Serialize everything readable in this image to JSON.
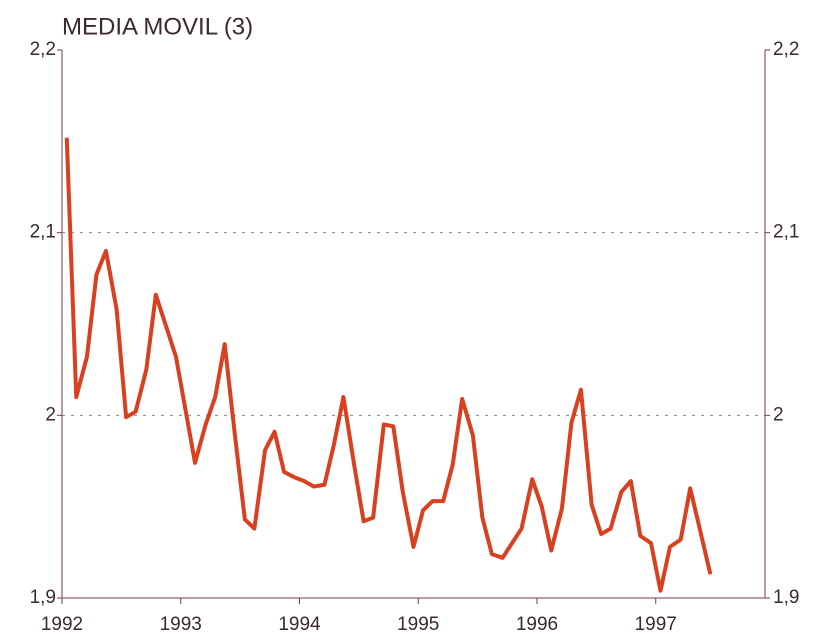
{
  "chart_data": {
    "type": "line",
    "title": "MEDIA MOVIL (3)",
    "x": [
      1992.04,
      1992.12,
      1992.21,
      1992.29,
      1992.37,
      1992.46,
      1992.54,
      1992.62,
      1992.71,
      1992.79,
      1992.87,
      1992.96,
      1993.04,
      1993.12,
      1993.21,
      1993.29,
      1993.37,
      1993.46,
      1993.54,
      1993.62,
      1993.71,
      1993.79,
      1993.87,
      1993.96,
      1994.04,
      1994.12,
      1994.21,
      1994.29,
      1994.37,
      1994.46,
      1994.54,
      1994.62,
      1994.71,
      1994.79,
      1994.87,
      1994.96,
      1995.04,
      1995.12,
      1995.21,
      1995.29,
      1995.37,
      1995.46,
      1995.54,
      1995.62,
      1995.71,
      1995.79,
      1995.87,
      1995.96,
      1996.04,
      1996.12,
      1996.21,
      1996.29,
      1996.37,
      1996.46,
      1996.54,
      1996.62,
      1996.71,
      1996.79,
      1996.87,
      1996.96,
      1997.04,
      1997.12,
      1997.21,
      1997.29,
      1997.37,
      1997.46
    ],
    "series": [
      {
        "color": "#d8401f",
        "values": [
          2.152,
          2.01,
          2.032,
          2.077,
          2.09,
          2.058,
          1.999,
          2.002,
          2.025,
          2.066,
          2.05,
          2.032,
          2.003,
          1.974,
          1.995,
          2.01,
          2.039,
          1.987,
          1.943,
          1.938,
          1.981,
          1.991,
          1.969,
          1.966,
          1.964,
          1.961,
          1.962,
          1.984,
          2.01,
          1.973,
          1.942,
          1.944,
          1.995,
          1.994,
          1.958,
          1.928,
          1.948,
          1.953,
          1.953,
          1.973,
          2.009,
          1.989,
          1.944,
          1.924,
          1.922,
          1.93,
          1.938,
          1.965,
          1.95,
          1.926,
          1.949,
          1.996,
          2.014,
          1.951,
          1.935,
          1.938,
          1.958,
          1.964,
          1.934,
          1.93,
          1.904,
          1.928,
          1.932,
          1.96,
          1.938,
          1.913
        ]
      }
    ],
    "xlim": [
      1992,
      1997.92
    ],
    "xticks": [
      1992,
      1993,
      1994,
      1995,
      1996,
      1997
    ],
    "ylim": [
      1.9,
      2.2
    ],
    "yticks": [
      {
        "value": 1.9,
        "label": "1,9"
      },
      2,
      {
        "value": 2.1,
        "label": "2,1"
      },
      {
        "value": 2.2,
        "label": "2,2"
      }
    ],
    "grid": true
  }
}
